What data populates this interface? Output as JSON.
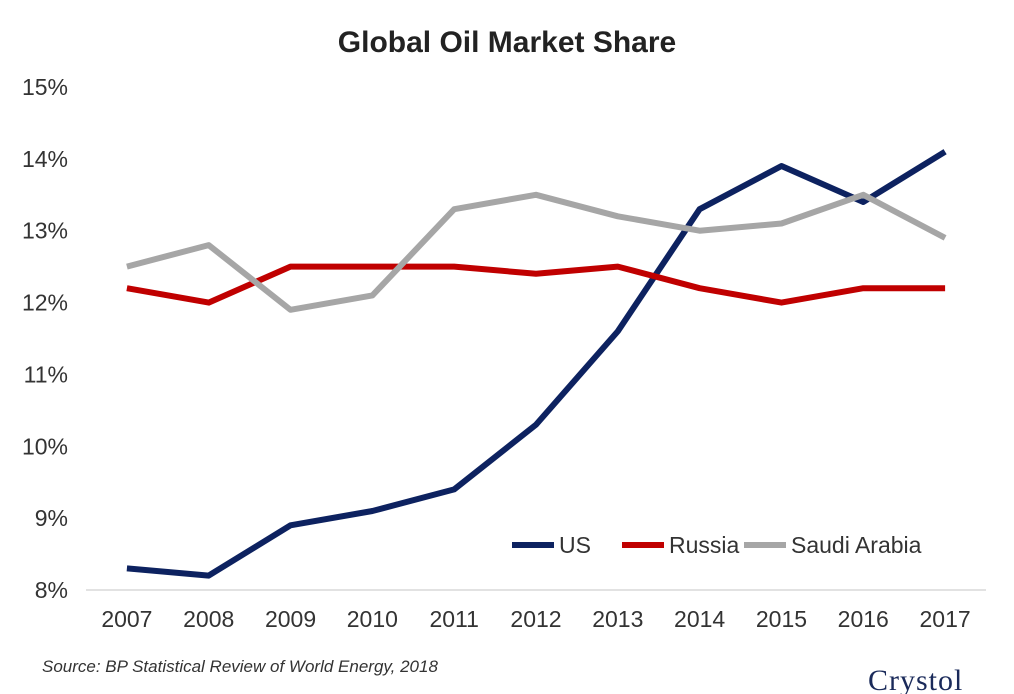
{
  "chart_data": {
    "type": "line",
    "title": "Global Oil Market Share",
    "xlabel": "",
    "ylabel": "",
    "categories": [
      "2007",
      "2008",
      "2009",
      "2010",
      "2011",
      "2012",
      "2013",
      "2014",
      "2015",
      "2016",
      "2017"
    ],
    "ylim": [
      8,
      15
    ],
    "yticks": [
      "8%",
      "9%",
      "10%",
      "11%",
      "12%",
      "13%",
      "14%",
      "15%"
    ],
    "grid": false,
    "legend_position": "bottom-right",
    "series": [
      {
        "name": "US",
        "color": "#0d2260",
        "values": [
          8.3,
          8.2,
          8.9,
          9.1,
          9.4,
          10.3,
          11.6,
          13.3,
          13.9,
          13.4,
          14.1
        ]
      },
      {
        "name": "Russia",
        "color": "#c00000",
        "values": [
          12.2,
          12.0,
          12.5,
          12.5,
          12.5,
          12.4,
          12.5,
          12.2,
          12.0,
          12.2,
          12.2
        ]
      },
      {
        "name": "Saudi Arabia",
        "color": "#a6a6a6",
        "values": [
          12.5,
          12.8,
          11.9,
          12.1,
          13.3,
          13.5,
          13.2,
          13.0,
          13.1,
          13.5,
          12.9
        ]
      }
    ]
  },
  "source": "Source: BP Statistical Review of World Energy, 2018",
  "logo": {
    "text": "Crystol"
  }
}
